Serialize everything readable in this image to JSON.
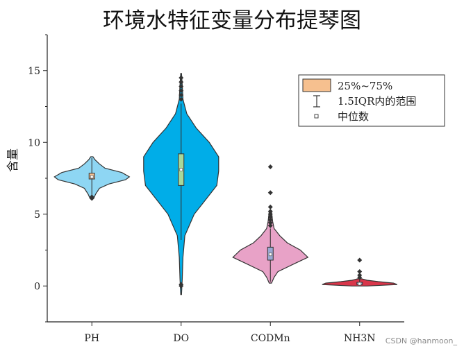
{
  "chart_data": {
    "type": "violin",
    "title": "环境水特征变量分布提琴图",
    "ylabel": "含量",
    "xlabel": "",
    "ylim": [
      -2.5,
      17.5
    ],
    "yticks": [
      0,
      5,
      10,
      15
    ],
    "categories": [
      "PH",
      "DO",
      "CODMn",
      "NH3N"
    ],
    "series": [
      {
        "category": "PH",
        "color": "#8ed6f3",
        "box_color": "#f6c08f",
        "min": 6.2,
        "q1": 7.45,
        "median": 7.6,
        "q3": 7.85,
        "max": 8.9,
        "density_points": [
          [
            6.1,
            0.05
          ],
          [
            6.4,
            0.1
          ],
          [
            6.8,
            0.2
          ],
          [
            7.1,
            0.45
          ],
          [
            7.4,
            0.9
          ],
          [
            7.6,
            1.0
          ],
          [
            7.9,
            0.8
          ],
          [
            8.2,
            0.35
          ],
          [
            8.5,
            0.2
          ],
          [
            8.8,
            0.08
          ],
          [
            9.0,
            0.03
          ]
        ],
        "outliers": [
          6.1,
          6.2
        ]
      },
      {
        "category": "DO",
        "color": "#00ade8",
        "box_color": "#a7d89b",
        "min": 3.2,
        "q1": 7.0,
        "median": 8.1,
        "q3": 9.2,
        "max": 12.7,
        "density_points": [
          [
            -0.6,
            0.01
          ],
          [
            0.5,
            0.03
          ],
          [
            2.0,
            0.05
          ],
          [
            3.5,
            0.1
          ],
          [
            5.0,
            0.35
          ],
          [
            6.0,
            0.65
          ],
          [
            7.0,
            0.95
          ],
          [
            8.0,
            1.0
          ],
          [
            9.0,
            1.0
          ],
          [
            10.0,
            0.75
          ],
          [
            11.0,
            0.4
          ],
          [
            12.0,
            0.15
          ],
          [
            13.0,
            0.05
          ],
          [
            14.0,
            0.03
          ],
          [
            14.8,
            0.01
          ]
        ],
        "outliers": [
          0.0,
          0.1,
          13.0,
          13.3,
          13.6,
          13.9,
          14.2,
          14.5
        ]
      },
      {
        "category": "CODMn",
        "color": "#e8a2c7",
        "box_color": "#9aa8d2",
        "min": 0.3,
        "q1": 1.8,
        "median": 2.2,
        "q3": 2.7,
        "max": 4.0,
        "density_points": [
          [
            0.2,
            0.03
          ],
          [
            0.6,
            0.1
          ],
          [
            1.0,
            0.2
          ],
          [
            1.5,
            0.6
          ],
          [
            2.0,
            1.0
          ],
          [
            2.5,
            0.8
          ],
          [
            3.0,
            0.45
          ],
          [
            3.5,
            0.25
          ],
          [
            4.0,
            0.1
          ],
          [
            4.5,
            0.06
          ],
          [
            5.2,
            0.03
          ]
        ],
        "outliers": [
          4.2,
          4.4,
          4.6,
          4.8,
          5.0,
          5.2,
          5.5,
          6.5,
          8.3
        ]
      },
      {
        "category": "NH3N",
        "color": "#d9364a",
        "box_color": "#9aa8d2",
        "min": 0.05,
        "q1": 0.1,
        "median": 0.15,
        "q3": 0.25,
        "max": 0.45,
        "density_points": [
          [
            0.0,
            0.2
          ],
          [
            0.1,
            1.0
          ],
          [
            0.2,
            0.9
          ],
          [
            0.3,
            0.5
          ],
          [
            0.4,
            0.2
          ],
          [
            0.5,
            0.05
          ]
        ],
        "outliers": [
          0.6,
          0.75,
          1.0,
          1.8
        ]
      }
    ],
    "legend": {
      "placement": "top-right",
      "items": [
        {
          "label": "25%~75%",
          "kind": "box",
          "color": "#f6c08f"
        },
        {
          "label": "1.5IQR内的范围",
          "kind": "whisker"
        },
        {
          "label": "中位数",
          "kind": "median"
        }
      ]
    }
  },
  "watermark": "CSDN @hanmoon_"
}
